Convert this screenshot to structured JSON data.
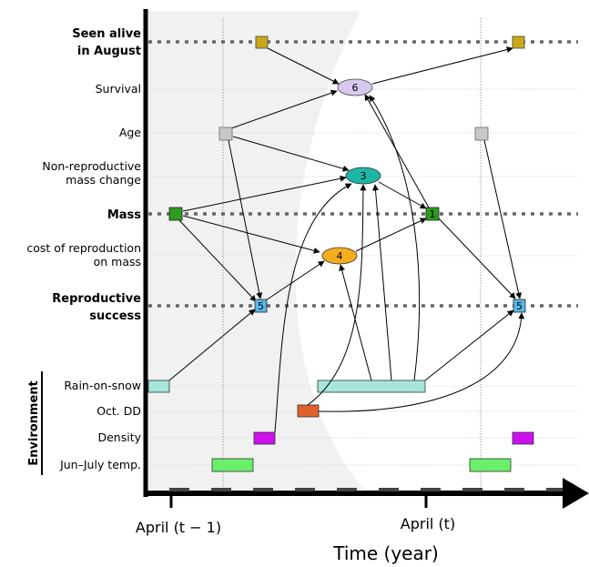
{
  "colors": {
    "survival_node": "#d7c8ef",
    "age_node": "#c8c8c8",
    "mass_change_node": "#1fb5a4",
    "mass_node": "#2e9a1f",
    "cost_node": "#f5ad1d",
    "repro_node": "#58b8e8",
    "seen_alive_node": "#c8a817",
    "rain_on_snow": "#a6e6dc",
    "oct_dd": "#e0622a",
    "density": "#cc11ee",
    "jun_july_temp": "#6af06a",
    "shade": "#f1f1f1"
  },
  "rows": {
    "seen_alive_line1": "Seen alive",
    "seen_alive_line2": "in August",
    "survival": "Survival",
    "age": "Age",
    "mass_change_line1": "Non-reproductive",
    "mass_change_line2": "mass change",
    "mass": "Mass",
    "cost_line1": "cost of reproduction",
    "cost_line2": "on mass",
    "repro_line1": "Reproductive",
    "repro_line2": "success",
    "rain_on_snow": "Rain-on-snow",
    "oct_dd": "Oct. DD",
    "density": "Density",
    "jun_july_temp": "Jun–July temp."
  },
  "environment_title": "Environment",
  "nodes": {
    "survival": "6",
    "mass_change": "3",
    "cost": "4",
    "mass": "1",
    "repro_prev": "5",
    "repro_next": "5"
  },
  "axis": {
    "tick_prev": "April (t − 1)",
    "tick_next": "April (t)",
    "title": "Time (year)"
  }
}
